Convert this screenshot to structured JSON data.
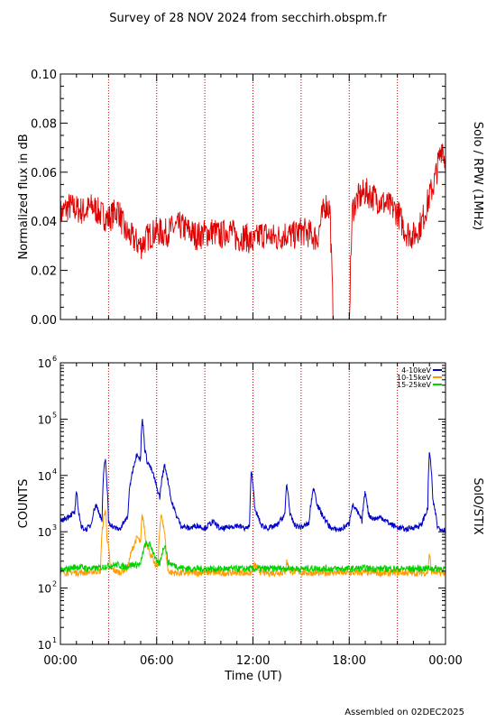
{
  "header": {
    "title": "Survey of 28 NOV 2024 from secchirh.obspm.fr"
  },
  "footer": {
    "assembled": "Assembled on 02DEC2025"
  },
  "chart_data": [
    {
      "type": "line",
      "right_label": "Solo / RPW (1MHz)",
      "ylabel": "Normalized flux in dB",
      "xlabel": "",
      "ylim": [
        0,
        0.1
      ],
      "yticks": [
        "0.00",
        "0.02",
        "0.04",
        "0.06",
        "0.08",
        "0.10"
      ],
      "xlim_hours": [
        0,
        24
      ],
      "vlines_hours": [
        3,
        6,
        9,
        12,
        15,
        18,
        21
      ],
      "series": [
        {
          "color": "#e00000",
          "x_hours": [
            0,
            0.5,
            1,
            1.5,
            2,
            2.5,
            3,
            3.3,
            3.6,
            4,
            4.5,
            5,
            5.5,
            6,
            6.5,
            7,
            7.5,
            8,
            8.5,
            9,
            9.5,
            10,
            10.5,
            11,
            11.5,
            12,
            12.5,
            13,
            13.5,
            14,
            14.5,
            15,
            15.5,
            16,
            16.5,
            16.8,
            17,
            17.1,
            17.2,
            17.6,
            18,
            18.1,
            18.2,
            18.5,
            19,
            19.5,
            20,
            20.5,
            21,
            21.5,
            22,
            22.5,
            23,
            23.3,
            23.6,
            23.8,
            24
          ],
          "values": [
            0.043,
            0.046,
            0.045,
            0.044,
            0.046,
            0.043,
            0.041,
            0.043,
            0.045,
            0.036,
            0.033,
            0.03,
            0.034,
            0.036,
            0.035,
            0.037,
            0.038,
            0.036,
            0.034,
            0.035,
            0.036,
            0.034,
            0.037,
            0.033,
            0.034,
            0.031,
            0.035,
            0.034,
            0.033,
            0.035,
            0.034,
            0.036,
            0.035,
            0.033,
            0.047,
            0.045,
            0.0,
            0.0,
            0.0,
            0.0,
            0.0,
            0.025,
            0.045,
            0.049,
            0.052,
            0.05,
            0.048,
            0.046,
            0.044,
            0.036,
            0.034,
            0.039,
            0.05,
            0.056,
            0.065,
            0.072,
            0.063
          ]
        }
      ]
    },
    {
      "type": "line",
      "right_label": "SolO/STIX",
      "ylabel": "COUNTS",
      "xlabel": "Time (UT)",
      "yscale": "log",
      "ylim": [
        10,
        1000000
      ],
      "ytick_exponents": [
        "1",
        "2",
        "3",
        "4",
        "5",
        "6"
      ],
      "xlim_hours": [
        0,
        24
      ],
      "vlines_hours": [
        3,
        6,
        9,
        12,
        15,
        18,
        21
      ],
      "xticks": [
        "00:00",
        "06:00",
        "12:00",
        "18:00",
        "00:00"
      ],
      "legend_position": "top-right",
      "series": [
        {
          "name": "4-10keV",
          "color": "#0000c8",
          "x_hours": [
            0,
            0.9,
            1.0,
            1.1,
            1.3,
            1.6,
            1.9,
            2.2,
            2.6,
            2.8,
            2.9,
            3.0,
            3.3,
            3.7,
            4.2,
            4.5,
            4.8,
            5.0,
            5.1,
            5.25,
            5.4,
            5.7,
            6.0,
            6.2,
            6.5,
            6.7,
            6.9,
            7.2,
            7.5,
            7.8,
            8.0,
            8.5,
            9,
            9.5,
            10,
            10.5,
            11,
            11.5,
            11.8,
            11.9,
            12.1,
            12.5,
            13,
            13.5,
            14,
            14.1,
            14.3,
            14.6,
            15,
            15.5,
            15.8,
            16,
            16.3,
            16.7,
            17,
            17.5,
            18,
            18.2,
            18.8,
            19,
            19.2,
            19.5,
            20,
            20.5,
            21,
            21.5,
            22,
            22.5,
            22.9,
            23.0,
            23.2,
            23.5,
            24
          ],
          "values": [
            1500,
            2200,
            5000,
            2500,
            1200,
            1100,
            1300,
            3000,
            1500,
            20000,
            6000,
            1500,
            1200,
            1100,
            1800,
            12000,
            25000,
            18000,
            100000,
            30000,
            18000,
            12000,
            6000,
            4000,
            15000,
            8000,
            3500,
            2000,
            1300,
            1200,
            1150,
            1300,
            1150,
            1500,
            1100,
            1200,
            1300,
            1150,
            1200,
            12000,
            2500,
            1300,
            1150,
            1300,
            2000,
            7000,
            2000,
            1300,
            1200,
            1400,
            6000,
            3000,
            2000,
            1300,
            1100,
            1100,
            1400,
            3000,
            1500,
            5000,
            2000,
            1700,
            1800,
            1400,
            1200,
            1100,
            1200,
            1300,
            2500,
            25000,
            3500,
            1200,
            1050
          ]
        },
        {
          "name": "10-15keV",
          "color": "#ff9a00",
          "x_hours": [
            0,
            1,
            1.5,
            2.2,
            2.5,
            2.8,
            2.9,
            3.1,
            3.4,
            3.7,
            4.2,
            4.5,
            4.8,
            5.0,
            5.1,
            5.3,
            5.6,
            5.9,
            6.1,
            6.3,
            6.6,
            6.7,
            6.9,
            7.3,
            8,
            9,
            10,
            11,
            11.9,
            12.1,
            12.5,
            13,
            14,
            14.1,
            14.3,
            15,
            16,
            17,
            18,
            19,
            20,
            20.5,
            21,
            22,
            22.5,
            22.9,
            23.0,
            23.1,
            23.5,
            24
          ],
          "values": [
            190,
            190,
            190,
            200,
            200,
            2500,
            800,
            230,
            200,
            190,
            230,
            500,
            800,
            600,
            2000,
            700,
            400,
            250,
            270,
            2000,
            350,
            200,
            190,
            185,
            185,
            190,
            185,
            190,
            185,
            260,
            190,
            185,
            190,
            300,
            200,
            190,
            185,
            190,
            185,
            190,
            185,
            185,
            190,
            185,
            185,
            190,
            420,
            200,
            185,
            185
          ]
        },
        {
          "name": "15-25keV",
          "color": "#00d200",
          "x_hours": [
            0,
            1,
            2,
            2.5,
            3,
            3.5,
            4,
            4.5,
            5,
            5.3,
            5.6,
            6,
            6.2,
            6.5,
            6.7,
            7,
            7.5,
            8,
            9,
            10,
            11,
            12,
            13,
            14,
            15,
            16,
            17,
            18,
            19,
            20,
            21,
            22,
            23,
            24
          ],
          "values": [
            200,
            240,
            220,
            230,
            250,
            260,
            240,
            260,
            260,
            600,
            580,
            280,
            270,
            600,
            290,
            260,
            230,
            220,
            220,
            220,
            220,
            220,
            220,
            225,
            220,
            225,
            220,
            220,
            225,
            220,
            220,
            220,
            225,
            220
          ]
        }
      ]
    }
  ]
}
